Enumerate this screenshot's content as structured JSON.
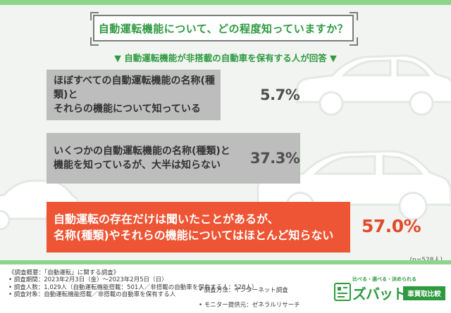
{
  "title": "自動運転機能について、どの程度知っていますか？",
  "subtitle": "▼ 自動運転機能が非搭載の自動車を保有する人が回答 ▼",
  "sample_note": "(n=528人)",
  "colors": {
    "accent_green": "#2e9a40",
    "highlight_red": "#ed5534",
    "bar_gray": "#bdbdbd",
    "stripe_green": "#8bd68b"
  },
  "chart_data": {
    "type": "bar",
    "orientation": "horizontal",
    "unit": "%",
    "categories": [
      "ほぼすべての自動運転機能の名称(種類)と\nそれらの機能について知っている",
      "いくつかの自動運転機能の名称(種類)と\n機能を知っているが、大半は知らない",
      "自動運転の存在だけは聞いたことがあるが、\n名称(種類)やそれらの機能についてはほとんど知らない"
    ],
    "values": [
      5.7,
      37.3,
      57.0
    ],
    "value_labels": [
      "5.7%",
      "37.3%",
      "57.0%"
    ],
    "highlight_index": 2
  },
  "footer": {
    "lines": [
      "《調査概要：「自動運転」に関する調査》",
      "• 調査期間：2023年2月3日（金）〜2023年2月5日（日）",
      "• 調査人数：1,029人（自動運転機能搭載：501人／非搭載の自動車を保有する人：528人）",
      "• 調査対象：自動運転機能搭載／非搭載の自動車を保有する人"
    ],
    "right_lines": [
      "• 調査方法：インターネット調査",
      "• モニター提供元：ゼネラルリサーチ"
    ]
  },
  "brand": {
    "tagline": "比べる・選べる・決められる",
    "name": "ズバット",
    "badge": "車買取比較"
  }
}
